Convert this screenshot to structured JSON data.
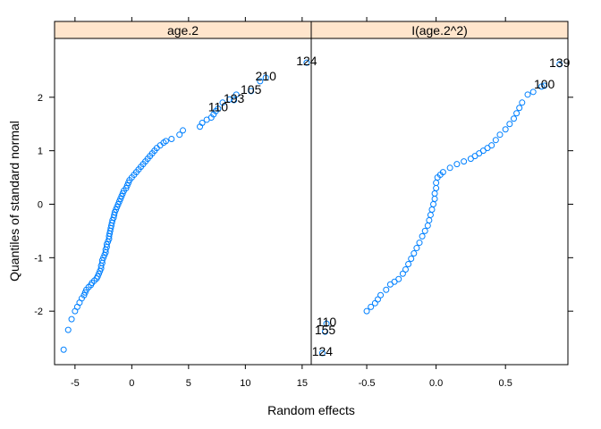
{
  "chart_data": {
    "type": "scatter",
    "xlabel": "Random effects",
    "ylabel": "Quantiles of standard normal",
    "ylim": [
      -3.0,
      3.1
    ],
    "yticks": [
      -2,
      -1,
      0,
      1,
      2
    ],
    "point_color": "#0080ff",
    "strip_color": "#ffe5cc",
    "grid": false,
    "panels": [
      {
        "name": "age.2",
        "xlim": [
          -6.8,
          15.8
        ],
        "xticks": [
          -5,
          0,
          5,
          10,
          15
        ],
        "xtick_labels": [
          "-5",
          "0",
          "5",
          "10",
          "15"
        ],
        "points": [
          [
            -6.0,
            -2.72
          ],
          [
            -5.6,
            -2.35
          ],
          [
            -5.3,
            -2.15
          ],
          [
            -5.0,
            -2.0
          ],
          [
            -4.8,
            -1.92
          ],
          [
            -4.6,
            -1.84
          ],
          [
            -4.4,
            -1.76
          ],
          [
            -4.2,
            -1.7
          ],
          [
            -4.1,
            -1.65
          ],
          [
            -4.0,
            -1.6
          ],
          [
            -3.8,
            -1.55
          ],
          [
            -3.6,
            -1.51
          ],
          [
            -3.5,
            -1.47
          ],
          [
            -3.3,
            -1.43
          ],
          [
            -3.1,
            -1.39
          ],
          [
            -3.0,
            -1.35
          ],
          [
            -2.9,
            -1.3
          ],
          [
            -2.8,
            -1.25
          ],
          [
            -2.7,
            -1.2
          ],
          [
            -2.7,
            -1.15
          ],
          [
            -2.6,
            -1.1
          ],
          [
            -2.6,
            -1.05
          ],
          [
            -2.5,
            -1.0
          ],
          [
            -2.4,
            -0.95
          ],
          [
            -2.3,
            -0.9
          ],
          [
            -2.3,
            -0.85
          ],
          [
            -2.2,
            -0.8
          ],
          [
            -2.2,
            -0.75
          ],
          [
            -2.1,
            -0.7
          ],
          [
            -2.0,
            -0.65
          ],
          [
            -2.0,
            -0.6
          ],
          [
            -1.95,
            -0.55
          ],
          [
            -1.9,
            -0.5
          ],
          [
            -1.85,
            -0.45
          ],
          [
            -1.8,
            -0.4
          ],
          [
            -1.75,
            -0.35
          ],
          [
            -1.7,
            -0.3
          ],
          [
            -1.6,
            -0.25
          ],
          [
            -1.55,
            -0.2
          ],
          [
            -1.5,
            -0.15
          ],
          [
            -1.4,
            -0.1
          ],
          [
            -1.3,
            -0.05
          ],
          [
            -1.2,
            0.0
          ],
          [
            -1.1,
            0.05
          ],
          [
            -1.0,
            0.1
          ],
          [
            -0.9,
            0.15
          ],
          [
            -0.8,
            0.2
          ],
          [
            -0.7,
            0.25
          ],
          [
            -0.5,
            0.3
          ],
          [
            -0.4,
            0.35
          ],
          [
            -0.3,
            0.4
          ],
          [
            -0.2,
            0.45
          ],
          [
            0.0,
            0.5
          ],
          [
            0.2,
            0.55
          ],
          [
            0.4,
            0.6
          ],
          [
            0.6,
            0.65
          ],
          [
            0.8,
            0.7
          ],
          [
            1.0,
            0.75
          ],
          [
            1.2,
            0.8
          ],
          [
            1.4,
            0.85
          ],
          [
            1.6,
            0.9
          ],
          [
            1.8,
            0.95
          ],
          [
            2.0,
            1.0
          ],
          [
            2.2,
            1.05
          ],
          [
            2.5,
            1.1
          ],
          [
            2.8,
            1.15
          ],
          [
            3.0,
            1.18
          ],
          [
            3.5,
            1.22
          ],
          [
            4.2,
            1.3
          ],
          [
            4.5,
            1.38
          ],
          [
            6.0,
            1.45
          ],
          [
            6.2,
            1.52
          ],
          [
            6.6,
            1.58
          ],
          [
            7.0,
            1.62
          ],
          [
            7.2,
            1.68
          ],
          [
            7.4,
            1.74
          ],
          [
            8.0,
            1.9
          ],
          [
            8.6,
            1.96
          ],
          [
            9.2,
            2.05
          ],
          [
            11.3,
            2.3
          ]
        ],
        "labeled_points": [
          {
            "label": "110",
            "x": 7.6,
            "y": 1.82
          },
          {
            "label": "193",
            "x": 9.0,
            "y": 1.98
          },
          {
            "label": "105",
            "x": 10.5,
            "y": 2.15
          },
          {
            "label": "210",
            "x": 11.8,
            "y": 2.4
          },
          {
            "label": "124",
            "x": 15.4,
            "y": 2.68
          }
        ]
      },
      {
        "name": "I(age.2^2)",
        "xlim": [
          -0.9,
          0.95
        ],
        "xticks": [
          -0.5,
          0.0,
          0.5
        ],
        "xtick_labels": [
          "-0.5",
          "0.0",
          "0.5"
        ],
        "points": [
          [
            -0.5,
            -2.0
          ],
          [
            -0.47,
            -1.92
          ],
          [
            -0.44,
            -1.85
          ],
          [
            -0.42,
            -1.78
          ],
          [
            -0.4,
            -1.7
          ],
          [
            -0.36,
            -1.6
          ],
          [
            -0.33,
            -1.5
          ],
          [
            -0.3,
            -1.45
          ],
          [
            -0.27,
            -1.4
          ],
          [
            -0.24,
            -1.3
          ],
          [
            -0.22,
            -1.22
          ],
          [
            -0.2,
            -1.12
          ],
          [
            -0.18,
            -1.02
          ],
          [
            -0.16,
            -0.92
          ],
          [
            -0.14,
            -0.82
          ],
          [
            -0.12,
            -0.72
          ],
          [
            -0.1,
            -0.6
          ],
          [
            -0.08,
            -0.5
          ],
          [
            -0.06,
            -0.4
          ],
          [
            -0.05,
            -0.3
          ],
          [
            -0.04,
            -0.2
          ],
          [
            -0.03,
            -0.1
          ],
          [
            -0.02,
            0.0
          ],
          [
            -0.01,
            0.1
          ],
          [
            -0.01,
            0.2
          ],
          [
            0.0,
            0.3
          ],
          [
            0.0,
            0.4
          ],
          [
            0.01,
            0.5
          ],
          [
            0.03,
            0.55
          ],
          [
            0.05,
            0.6
          ],
          [
            0.1,
            0.68
          ],
          [
            0.15,
            0.75
          ],
          [
            0.2,
            0.8
          ],
          [
            0.25,
            0.85
          ],
          [
            0.28,
            0.9
          ],
          [
            0.31,
            0.95
          ],
          [
            0.34,
            1.0
          ],
          [
            0.37,
            1.05
          ],
          [
            0.4,
            1.1
          ],
          [
            0.43,
            1.2
          ],
          [
            0.46,
            1.3
          ],
          [
            0.5,
            1.4
          ],
          [
            0.53,
            1.5
          ],
          [
            0.56,
            1.6
          ],
          [
            0.58,
            1.7
          ],
          [
            0.6,
            1.8
          ],
          [
            0.62,
            1.9
          ],
          [
            0.66,
            2.05
          ],
          [
            0.7,
            2.1
          ],
          [
            0.76,
            2.2
          ]
        ],
        "labeled_points": [
          {
            "label": "124",
            "x": -0.82,
            "y": -2.75
          },
          {
            "label": "155",
            "x": -0.8,
            "y": -2.35
          },
          {
            "label": "110",
            "x": -0.79,
            "y": -2.2
          },
          {
            "label": "100",
            "x": 0.78,
            "y": 2.25
          },
          {
            "label": "139",
            "x": 0.89,
            "y": 2.65
          }
        ]
      }
    ]
  }
}
